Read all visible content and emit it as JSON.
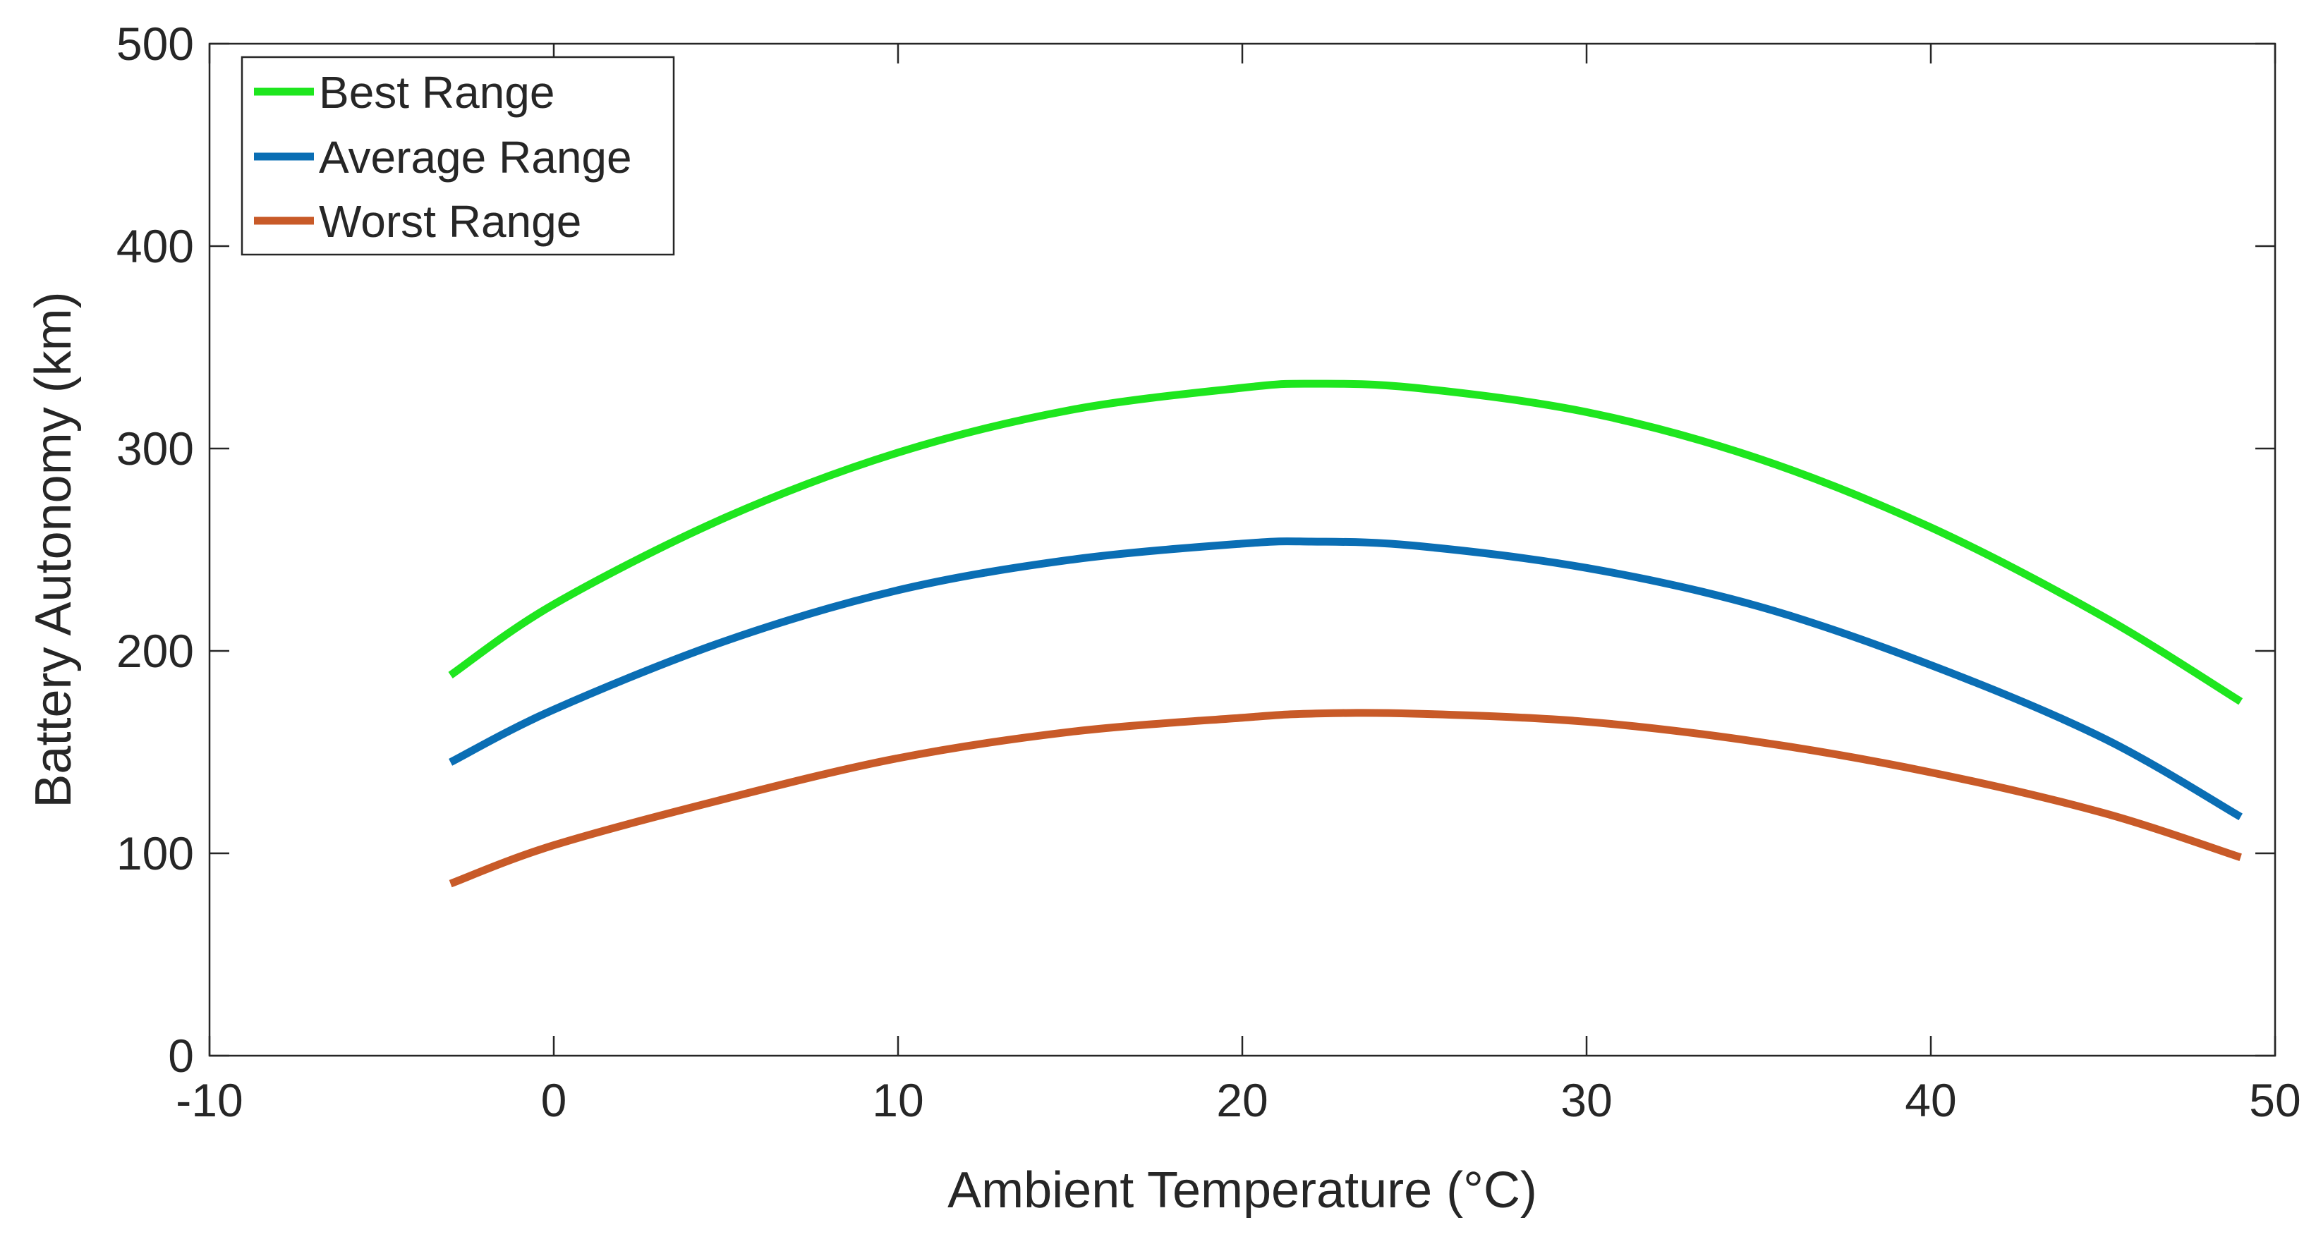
{
  "chart_data": {
    "type": "line",
    "title": "",
    "xlabel": "Ambient Temperature (°C)",
    "ylabel": "Battery Autonomy (km)",
    "xlim": [
      -10,
      50
    ],
    "ylim": [
      0,
      500
    ],
    "xticks": [
      -10,
      0,
      10,
      20,
      30,
      40,
      50
    ],
    "yticks": [
      0,
      100,
      200,
      300,
      400,
      500
    ],
    "xtick_labels": [
      "-10",
      "0",
      "10",
      "20",
      "30",
      "40",
      "50"
    ],
    "ytick_labels": [
      "0",
      "100",
      "200",
      "300",
      "400",
      "500"
    ],
    "grid": false,
    "legend_position": "top-left",
    "x": [
      -3,
      0,
      5,
      10,
      15,
      20,
      22,
      25,
      30,
      35,
      40,
      45,
      49
    ],
    "series": [
      {
        "name": "Best Range",
        "color": "#1ee61e",
        "values": [
          188,
          223,
          266,
          298,
          319,
          330,
          332,
          330,
          318,
          295,
          261,
          217,
          175
        ]
      },
      {
        "name": "Average Range",
        "color": "#0a6eb4",
        "values": [
          145,
          171,
          205,
          230,
          245,
          253,
          254,
          252,
          241,
          222,
          193,
          157,
          118
        ]
      },
      {
        "name": "Worst Range",
        "color": "#c85a28",
        "values": [
          85,
          104,
          127,
          147,
          160,
          167,
          169,
          169,
          165,
          155,
          140,
          120,
          98
        ]
      }
    ]
  }
}
